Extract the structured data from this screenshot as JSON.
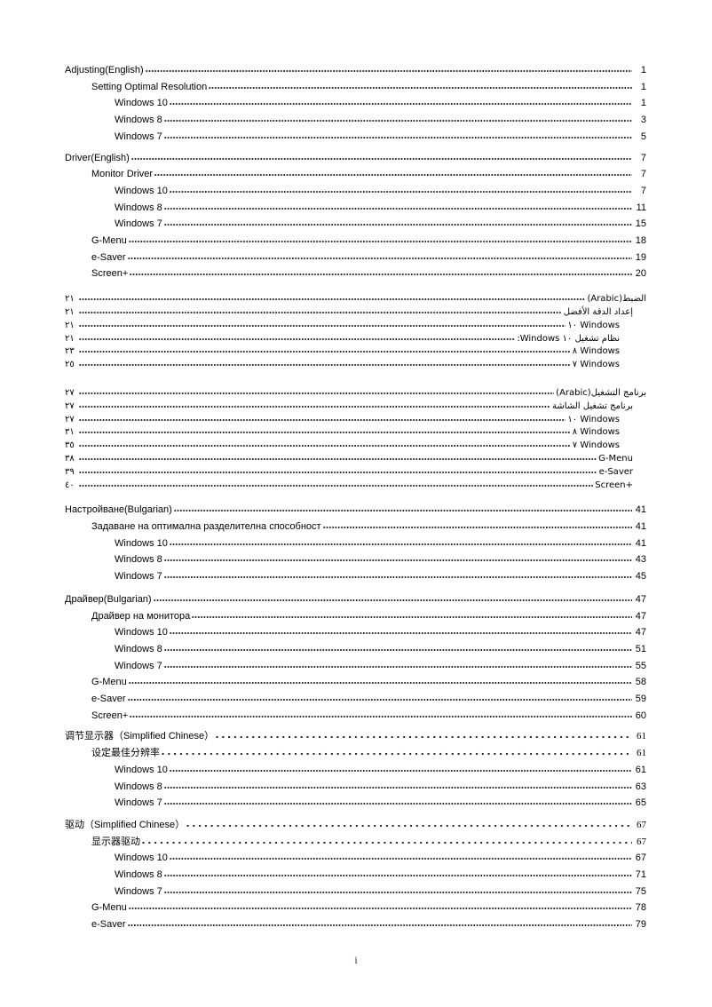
{
  "document": {
    "footer_page_label": "i"
  },
  "toc_sections": [
    {
      "id": "adjusting-english",
      "dir": "ltr",
      "script": "latin",
      "entries": [
        {
          "level": 0,
          "label": "Adjusting(English)",
          "page": "1",
          "leader": "fine"
        },
        {
          "level": 1,
          "label": "Setting Optimal Resolution",
          "page": "1",
          "leader": "fine"
        },
        {
          "level": 2,
          "label": "Windows 10",
          "page": "1",
          "leader": "fine"
        },
        {
          "level": 2,
          "label": "Windows 8",
          "page": "3",
          "leader": "fine"
        },
        {
          "level": 2,
          "label": "Windows 7",
          "page": "5",
          "leader": "fine"
        }
      ]
    },
    {
      "id": "driver-english",
      "dir": "ltr",
      "script": "latin",
      "entries": [
        {
          "level": 0,
          "label": "Driver(English)",
          "page": "7",
          "leader": "fine"
        },
        {
          "level": 1,
          "label": "Monitor Driver",
          "page": "7",
          "leader": "fine"
        },
        {
          "level": 2,
          "label": "Windows 10",
          "page": "7",
          "leader": "fine"
        },
        {
          "level": 2,
          "label": "Windows 8",
          "page": "11",
          "leader": "fine"
        },
        {
          "level": 2,
          "label": "Windows 7",
          "page": "15",
          "leader": "fine"
        },
        {
          "level": 1,
          "label": "G-Menu",
          "page": "18",
          "leader": "fine"
        },
        {
          "level": 1,
          "label": "e-Saver",
          "page": "19",
          "leader": "fine"
        },
        {
          "level": 1,
          "label": "Screen+",
          "page": "20",
          "leader": "fine"
        }
      ]
    },
    {
      "id": "adjusting-arabic",
      "dir": "rtl",
      "script": "arabic",
      "entries": [
        {
          "level": 0,
          "label": "الضبط(Arabic)",
          "page": "٢١",
          "leader": "fine"
        },
        {
          "level": 1,
          "label": "إعداد الدقة الأفضل",
          "page": "٢١",
          "leader": "fine"
        },
        {
          "level": 2,
          "label": "١٠ Windows",
          "page": "٢١",
          "leader": "fine"
        },
        {
          "level": 2,
          "label": "نظام تشغيل ١٠ Windows:",
          "page": "٢١",
          "leader": "fine"
        },
        {
          "level": 2,
          "label": "٨ Windows",
          "page": "٢٣",
          "leader": "fine"
        },
        {
          "level": 2,
          "label": "٧ Windows",
          "page": "٢٥",
          "leader": "fine"
        }
      ]
    },
    {
      "id": "driver-arabic",
      "dir": "rtl",
      "script": "arabic",
      "entries": [
        {
          "level": 0,
          "label": "برنامج التشغيل(Arabic)",
          "page": "٢٧",
          "leader": "fine"
        },
        {
          "level": 1,
          "label": "برنامج تشغيل الشاشة",
          "page": "٢٧",
          "leader": "fine"
        },
        {
          "level": 2,
          "label": "١٠ Windows",
          "page": "٢٧",
          "leader": "fine"
        },
        {
          "level": 2,
          "label": "٨ Windows",
          "page": "٣١",
          "leader": "fine"
        },
        {
          "level": 2,
          "label": "٧ Windows",
          "page": "٣٥",
          "leader": "fine"
        },
        {
          "level": 1,
          "label": "G-Menu",
          "page": "٣٨",
          "leader": "fine"
        },
        {
          "level": 1,
          "label": "e-Saver",
          "page": "٣٩",
          "leader": "fine"
        },
        {
          "level": 1,
          "label": "Screen+",
          "page": "٤٠",
          "leader": "fine"
        }
      ]
    },
    {
      "id": "adjusting-bulgarian",
      "dir": "ltr",
      "script": "latin",
      "entries": [
        {
          "level": 0,
          "label": "Настройване(Bulgarian)",
          "page": "41",
          "leader": "fine"
        },
        {
          "level": 1,
          "label": "Задаване на оптимална разделителна способност",
          "page": "41",
          "leader": "fine"
        },
        {
          "level": 2,
          "label": "Windows 10",
          "page": "41",
          "leader": "fine"
        },
        {
          "level": 2,
          "label": "Windows 8",
          "page": "43",
          "leader": "fine"
        },
        {
          "level": 2,
          "label": "Windows 7",
          "page": "45",
          "leader": "fine"
        }
      ]
    },
    {
      "id": "driver-bulgarian",
      "dir": "ltr",
      "script": "latin",
      "entries": [
        {
          "level": 0,
          "label": "Драйвер(Bulgarian)",
          "page": "47",
          "leader": "fine"
        },
        {
          "level": 1,
          "label": "Драйвер на монитора",
          "page": "47",
          "leader": "fine"
        },
        {
          "level": 2,
          "label": "Windows 10",
          "page": "47",
          "leader": "fine"
        },
        {
          "level": 2,
          "label": "Windows 8",
          "page": "51",
          "leader": "fine"
        },
        {
          "level": 2,
          "label": "Windows 7",
          "page": "55",
          "leader": "fine"
        },
        {
          "level": 1,
          "label": "G-Menu",
          "page": "58",
          "leader": "fine"
        },
        {
          "level": 1,
          "label": "e-Saver",
          "page": "59",
          "leader": "fine"
        },
        {
          "level": 1,
          "label": "Screen+",
          "page": "60",
          "leader": "fine"
        }
      ]
    },
    {
      "id": "adjusting-simplified-chinese",
      "dir": "ltr",
      "script": "cjk",
      "entries": [
        {
          "level": 0,
          "label": "调节显示器（Simplified Chinese）",
          "page": "61",
          "leader": "wide"
        },
        {
          "level": 1,
          "label": "设定最佳分辨率",
          "page": "61",
          "leader": "wide"
        },
        {
          "level": 2,
          "label": "Windows 10",
          "page": "61",
          "leader": "fine"
        },
        {
          "level": 2,
          "label": "Windows 8",
          "page": "63",
          "leader": "fine"
        },
        {
          "level": 2,
          "label": "Windows 7",
          "page": "65",
          "leader": "fine"
        }
      ]
    },
    {
      "id": "driver-simplified-chinese",
      "dir": "ltr",
      "script": "cjk",
      "entries": [
        {
          "level": 0,
          "label": "驱动（Simplified Chinese）",
          "page": "67",
          "leader": "wide"
        },
        {
          "level": 1,
          "label": "显示器驱动",
          "page": "67",
          "leader": "wide"
        },
        {
          "level": 2,
          "label": "Windows 10",
          "page": "67",
          "leader": "fine"
        },
        {
          "level": 2,
          "label": "Windows 8",
          "page": "71",
          "leader": "fine"
        },
        {
          "level": 2,
          "label": "Windows 7",
          "page": "75",
          "leader": "fine"
        },
        {
          "level": 1,
          "label": "G-Menu",
          "page": "78",
          "leader": "fine"
        },
        {
          "level": 1,
          "label": "e-Saver",
          "page": "79",
          "leader": "fine"
        }
      ]
    }
  ]
}
